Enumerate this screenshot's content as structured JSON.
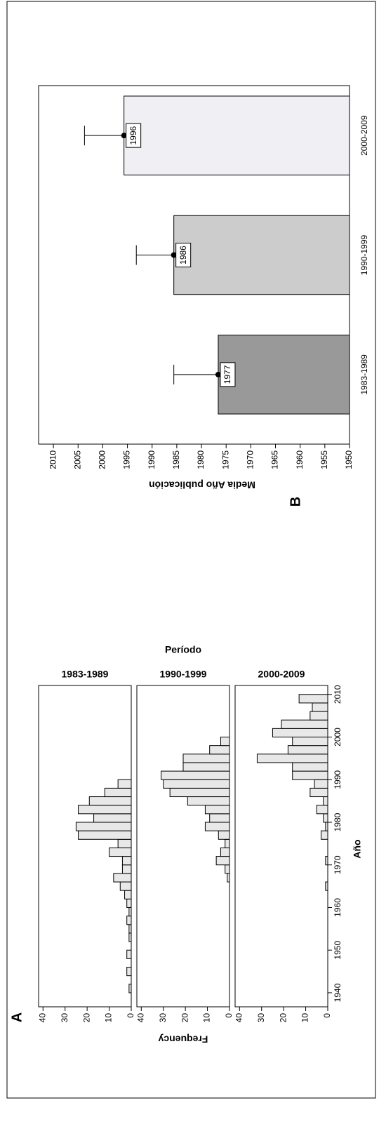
{
  "chart_data": [
    {
      "type": "histogram",
      "label": "A",
      "panel_title": "Período",
      "xlabel": "Año",
      "ylabel": "Frequency",
      "bins": [
        1940,
        1942,
        1944,
        1946,
        1948,
        1950,
        1952,
        1954,
        1956,
        1958,
        1960,
        1962,
        1964,
        1966,
        1968,
        1970,
        1972,
        1974,
        1976,
        1978,
        1980,
        1982,
        1984,
        1986,
        1988,
        1990,
        1992,
        1994,
        1996,
        1998,
        2000,
        2002,
        2004,
        2006,
        2008,
        2010,
        2012
      ],
      "color": "#e8e8e8",
      "series": [
        {
          "name": "1983-1989",
          "values": [
            1,
            0,
            2,
            0,
            2,
            0,
            1,
            1,
            2,
            1,
            2,
            3,
            5,
            8,
            4,
            4,
            10,
            6,
            24,
            25,
            17,
            24,
            19,
            12,
            6,
            0,
            0,
            0,
            0,
            0,
            0,
            0,
            0,
            0,
            0,
            0
          ]
        },
        {
          "name": "1990-1999",
          "values": [
            0,
            0,
            0,
            0,
            0,
            0,
            0,
            0,
            0,
            0,
            0,
            0,
            0,
            1,
            2,
            6,
            4,
            2,
            5,
            11,
            9,
            11,
            19,
            27,
            30,
            31,
            21,
            21,
            9,
            4,
            0,
            0,
            0,
            0,
            0,
            0
          ]
        },
        {
          "name": "2000-2009",
          "values": [
            0,
            0,
            0,
            0,
            0,
            0,
            0,
            0,
            0,
            0,
            0,
            0,
            1,
            0,
            0,
            1,
            0,
            0,
            3,
            1,
            2,
            5,
            2,
            8,
            6,
            16,
            16,
            32,
            18,
            16,
            25,
            21,
            8,
            7,
            13,
            0
          ]
        }
      ],
      "xlim": [
        1936.7,
        2012.1
      ],
      "xticks": [
        1940,
        1950,
        1960,
        1970,
        1980,
        1990,
        2000,
        2010
      ],
      "ylim": [
        0,
        42
      ],
      "yticks": [
        0,
        10,
        20,
        30,
        40
      ]
    },
    {
      "type": "bar",
      "label": "B",
      "ylabel": "Media Año publicación",
      "categories": [
        "1983-1989",
        "1990-1999",
        "2000-2009"
      ],
      "values": [
        1976.6,
        1985.6,
        1995.7
      ],
      "value_labels": [
        "1977",
        "1986",
        "1996"
      ],
      "errors": [
        9,
        7.6,
        8
      ],
      "colors": [
        "#999999",
        "#cccccc",
        "#f0eff4"
      ],
      "ylim": [
        1950,
        2013
      ],
      "yticks": [
        1950,
        1955,
        1960,
        1965,
        1970,
        1975,
        1980,
        1985,
        1990,
        1995,
        2000,
        2005,
        2010
      ]
    }
  ]
}
